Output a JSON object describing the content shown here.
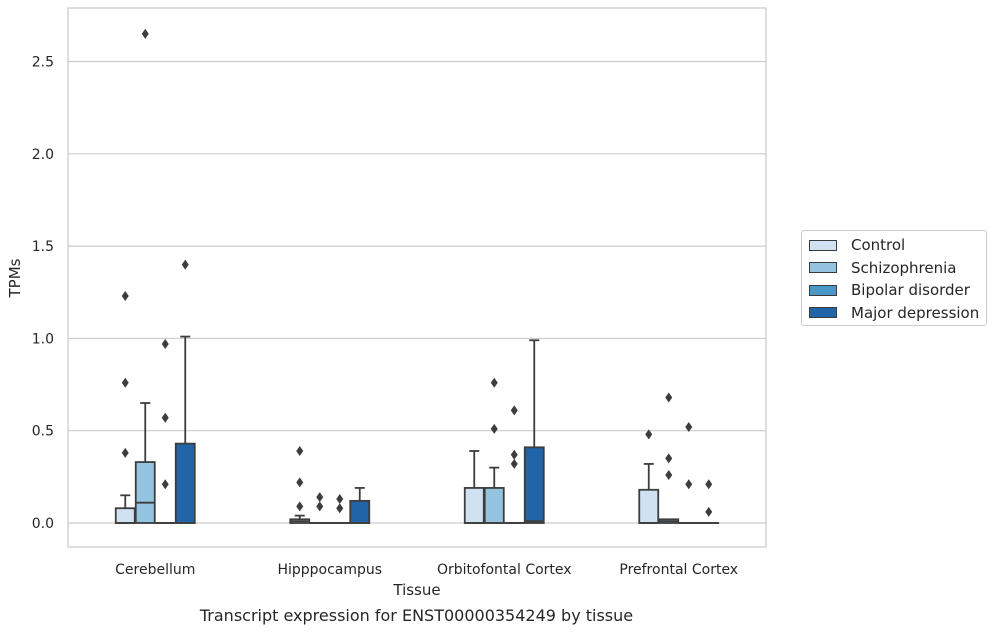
{
  "chart_data": {
    "type": "box",
    "xlabel": "Tissue",
    "ylabel": "TPMs",
    "caption": "Transcript expression for ENST00000354249 by tissue",
    "categories": [
      "Cerebellum",
      "Hipppocampus",
      "Orbitofontal Cortex",
      "Prefrontal Cortex"
    ],
    "ylim": [
      -0.13,
      2.79
    ],
    "yticks": [
      "0.0",
      "0.5",
      "1.0",
      "1.5",
      "2.0",
      "2.5"
    ],
    "ytick_values": [
      0.0,
      0.5,
      1.0,
      1.5,
      2.0,
      2.5
    ],
    "grid": true,
    "legend_position": "right",
    "series": [
      {
        "name": "Control",
        "color": "#d0e1f2",
        "boxes": [
          {
            "q1": 0.0,
            "median": 0.0,
            "q3": 0.08,
            "whisker_low": 0.0,
            "whisker_high": 0.15,
            "outliers": [
              0.38,
              0.76,
              1.23
            ]
          },
          {
            "q1": 0.0,
            "median": 0.01,
            "q3": 0.02,
            "whisker_low": 0.0,
            "whisker_high": 0.04,
            "outliers": [
              0.09,
              0.22,
              0.39
            ]
          },
          {
            "q1": 0.0,
            "median": 0.0,
            "q3": 0.19,
            "whisker_low": 0.0,
            "whisker_high": 0.39,
            "outliers": []
          },
          {
            "q1": 0.0,
            "median": 0.0,
            "q3": 0.18,
            "whisker_low": 0.0,
            "whisker_high": 0.32,
            "outliers": [
              0.48
            ]
          }
        ]
      },
      {
        "name": "Schizophrenia",
        "color": "#94c4df",
        "boxes": [
          {
            "q1": 0.0,
            "median": 0.11,
            "q3": 0.33,
            "whisker_low": 0.0,
            "whisker_high": 0.65,
            "outliers": [
              2.65
            ]
          },
          {
            "q1": 0.0,
            "median": 0.0,
            "q3": 0.0,
            "whisker_low": 0.0,
            "whisker_high": 0.0,
            "outliers": [
              0.09,
              0.14
            ]
          },
          {
            "q1": 0.0,
            "median": 0.0,
            "q3": 0.19,
            "whisker_low": 0.0,
            "whisker_high": 0.3,
            "outliers": [
              0.51,
              0.76
            ]
          },
          {
            "q1": 0.0,
            "median": 0.01,
            "q3": 0.02,
            "whisker_low": 0.0,
            "whisker_high": 0.02,
            "outliers": [
              0.26,
              0.35,
              0.68
            ]
          }
        ]
      },
      {
        "name": "Bipolar disorder",
        "color": "#4a98c9",
        "boxes": [
          {
            "q1": 0.0,
            "median": 0.0,
            "q3": 0.0,
            "whisker_low": 0.0,
            "whisker_high": 0.0,
            "outliers": [
              0.21,
              0.57,
              0.97
            ]
          },
          {
            "q1": 0.0,
            "median": 0.0,
            "q3": 0.0,
            "whisker_low": 0.0,
            "whisker_high": 0.0,
            "outliers": [
              0.08,
              0.13
            ]
          },
          {
            "q1": 0.0,
            "median": 0.0,
            "q3": 0.0,
            "whisker_low": 0.0,
            "whisker_high": 0.0,
            "outliers": [
              0.32,
              0.37,
              0.61
            ]
          },
          {
            "q1": 0.0,
            "median": 0.0,
            "q3": 0.0,
            "whisker_low": 0.0,
            "whisker_high": 0.0,
            "outliers": [
              0.21,
              0.52
            ]
          }
        ]
      },
      {
        "name": "Major depression",
        "color": "#2264a8",
        "boxes": [
          {
            "q1": 0.0,
            "median": 0.0,
            "q3": 0.43,
            "whisker_low": 0.0,
            "whisker_high": 1.01,
            "outliers": [
              1.4
            ]
          },
          {
            "q1": 0.0,
            "median": 0.0,
            "q3": 0.12,
            "whisker_low": 0.0,
            "whisker_high": 0.19,
            "outliers": []
          },
          {
            "q1": 0.0,
            "median": 0.01,
            "q3": 0.41,
            "whisker_low": 0.0,
            "whisker_high": 0.99,
            "outliers": []
          },
          {
            "q1": 0.0,
            "median": 0.0,
            "q3": 0.0,
            "whisker_low": 0.0,
            "whisker_high": 0.0,
            "outliers": [
              0.06,
              0.21
            ]
          }
        ]
      }
    ]
  }
}
